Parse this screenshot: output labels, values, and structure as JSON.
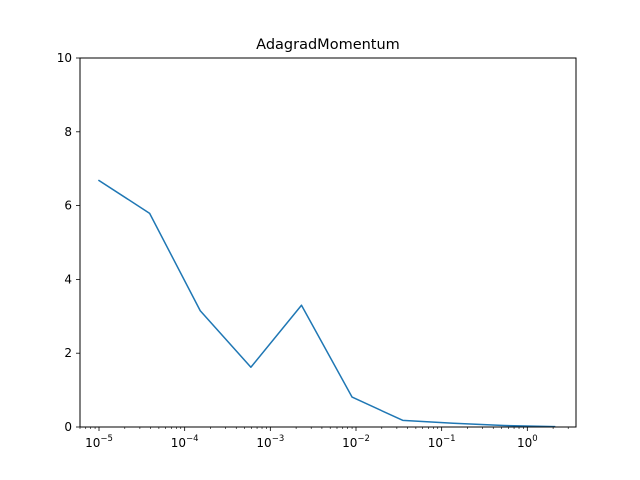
{
  "chart_data": {
    "type": "line",
    "title": "AdagradMomentum",
    "xlabel": "",
    "ylabel": "",
    "xscale": "log",
    "xlim": [
      6e-06,
      3.7
    ],
    "ylim": [
      0,
      10
    ],
    "grid": false,
    "line_color": "#1f77b4",
    "x": [
      1e-05,
      3.9e-05,
      0.000152,
      0.000593,
      0.00231,
      0.009,
      0.0351,
      0.137,
      0.534,
      2.08
    ],
    "y": [
      6.68,
      5.79,
      3.15,
      1.62,
      3.3,
      0.81,
      0.18,
      0.1,
      0.04,
      0.01
    ],
    "x_major_ticks": [
      {
        "value": 1e-05,
        "base": "10",
        "exp": "−5"
      },
      {
        "value": 0.0001,
        "base": "10",
        "exp": "−4"
      },
      {
        "value": 0.001,
        "base": "10",
        "exp": "−3"
      },
      {
        "value": 0.01,
        "base": "10",
        "exp": "−2"
      },
      {
        "value": 0.1,
        "base": "10",
        "exp": "−1"
      },
      {
        "value": 1,
        "base": "10",
        "exp": "0"
      }
    ],
    "y_ticks": [
      {
        "value": 0,
        "label": "0"
      },
      {
        "value": 2,
        "label": "2"
      },
      {
        "value": 4,
        "label": "4"
      },
      {
        "value": 6,
        "label": "6"
      },
      {
        "value": 8,
        "label": "8"
      },
      {
        "value": 10,
        "label": "10"
      }
    ]
  }
}
